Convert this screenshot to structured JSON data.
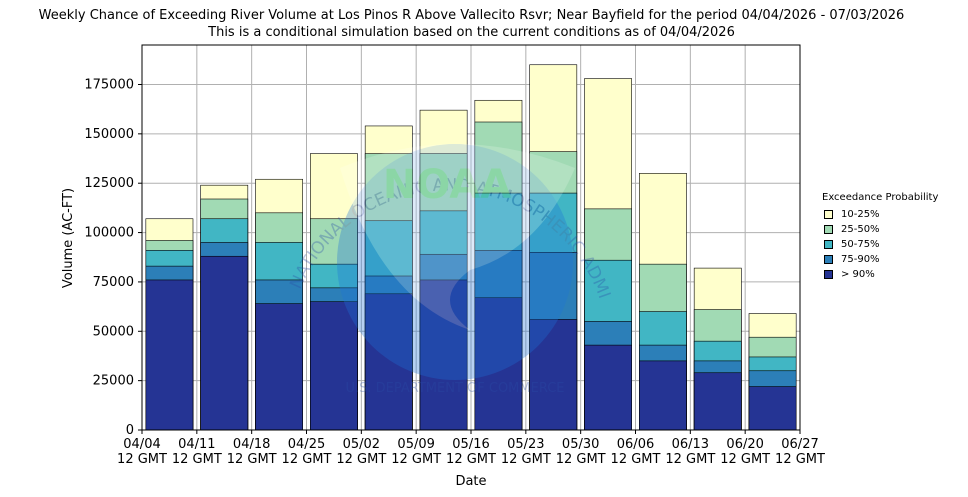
{
  "chart_data": {
    "type": "bar",
    "stacked_overlay": true,
    "title": "Weekly Chance of Exceeding River Volume at Los Pinos R Above Vallecito Rsvr; Near Bayfield for the period 04/04/2026 - 07/03/2026",
    "subtitle": "This is a conditional simulation based on the current conditions as of 04/04/2026",
    "xlabel": "Date",
    "ylabel": "Volume (AC-FT)",
    "ylim": [
      0,
      195000
    ],
    "yticks": [
      0,
      25000,
      50000,
      75000,
      100000,
      125000,
      150000,
      175000
    ],
    "ytick_labels": [
      "0",
      "25000",
      "50000",
      "75000",
      "100000",
      "125000",
      "150000",
      "175000"
    ],
    "xtick_labels": [
      [
        "04/04",
        "12 GMT"
      ],
      [
        "04/11",
        "12 GMT"
      ],
      [
        "04/18",
        "12 GMT"
      ],
      [
        "04/25",
        "12 GMT"
      ],
      [
        "05/02",
        "12 GMT"
      ],
      [
        "05/09",
        "12 GMT"
      ],
      [
        "05/16",
        "12 GMT"
      ],
      [
        "05/23",
        "12 GMT"
      ],
      [
        "05/30",
        "12 GMT"
      ],
      [
        "06/06",
        "12 GMT"
      ],
      [
        "06/13",
        "12 GMT"
      ],
      [
        "06/20",
        "12 GMT"
      ],
      [
        "06/27",
        "12 GMT"
      ]
    ],
    "grid": true,
    "legend_position": "right",
    "legend_title": "Exceedance Probability",
    "series": [
      {
        "name": "10-25%",
        "color": "#ffffcc",
        "values": [
          107000,
          124000,
          127000,
          140000,
          154000,
          162000,
          167000,
          185000,
          178000,
          130000,
          82000,
          59000
        ]
      },
      {
        "name": "25-50%",
        "color": "#a1dab4",
        "values": [
          96000,
          117000,
          110000,
          107000,
          140000,
          140000,
          156000,
          141000,
          112000,
          84000,
          61000,
          47000
        ]
      },
      {
        "name": "50-75%",
        "color": "#41b6c4",
        "values": [
          91000,
          107000,
          95000,
          84000,
          106000,
          111000,
          120000,
          120000,
          86000,
          60000,
          45000,
          37000
        ]
      },
      {
        "name": "75-90%",
        "color": "#2c7fb8",
        "values": [
          83000,
          95000,
          76000,
          72000,
          78000,
          89000,
          91000,
          90000,
          55000,
          43000,
          35000,
          30000
        ]
      },
      {
        "name": "> 90%",
        "color": "#253494",
        "values": [
          76000,
          88000,
          64000,
          65000,
          69000,
          76000,
          67000,
          56000,
          43000,
          35000,
          29000,
          22000
        ]
      }
    ]
  },
  "watermark": {
    "logo_text": "NOAA",
    "ring_text": "NATIONAL OCEANIC AND ATMOSPHERIC ADMINISTRATION",
    "bottom_text": "U.S. DEPARTMENT OF COMMERCE"
  }
}
